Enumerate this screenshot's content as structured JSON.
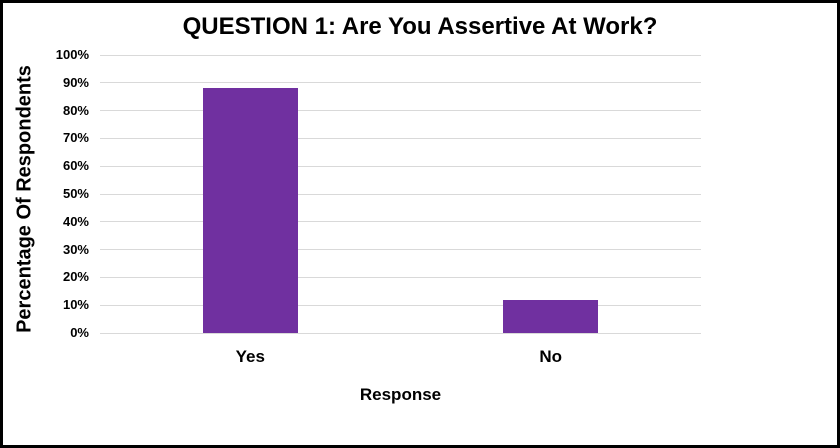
{
  "window": {
    "background_color": "#ffffff",
    "border_color": "#000000"
  },
  "chart_data": {
    "type": "bar",
    "title": "QUESTION 1: Are You Assertive At Work?",
    "xlabel": "Response",
    "ylabel": "Percentage Of Respondents",
    "categories": [
      "Yes",
      "No"
    ],
    "values": [
      88,
      12
    ],
    "value_suffix": "%",
    "ylim": [
      0,
      100
    ],
    "ytick_step": 10,
    "ytick_labels": [
      "0%",
      "10%",
      "20%",
      "30%",
      "40%",
      "50%",
      "60%",
      "70%",
      "80%",
      "90%",
      "100%"
    ],
    "grid": "horizontal",
    "legend": "none",
    "bar_color": "#7030A0",
    "gridline_color": "#D9D9D9",
    "text_color": "#000000"
  }
}
